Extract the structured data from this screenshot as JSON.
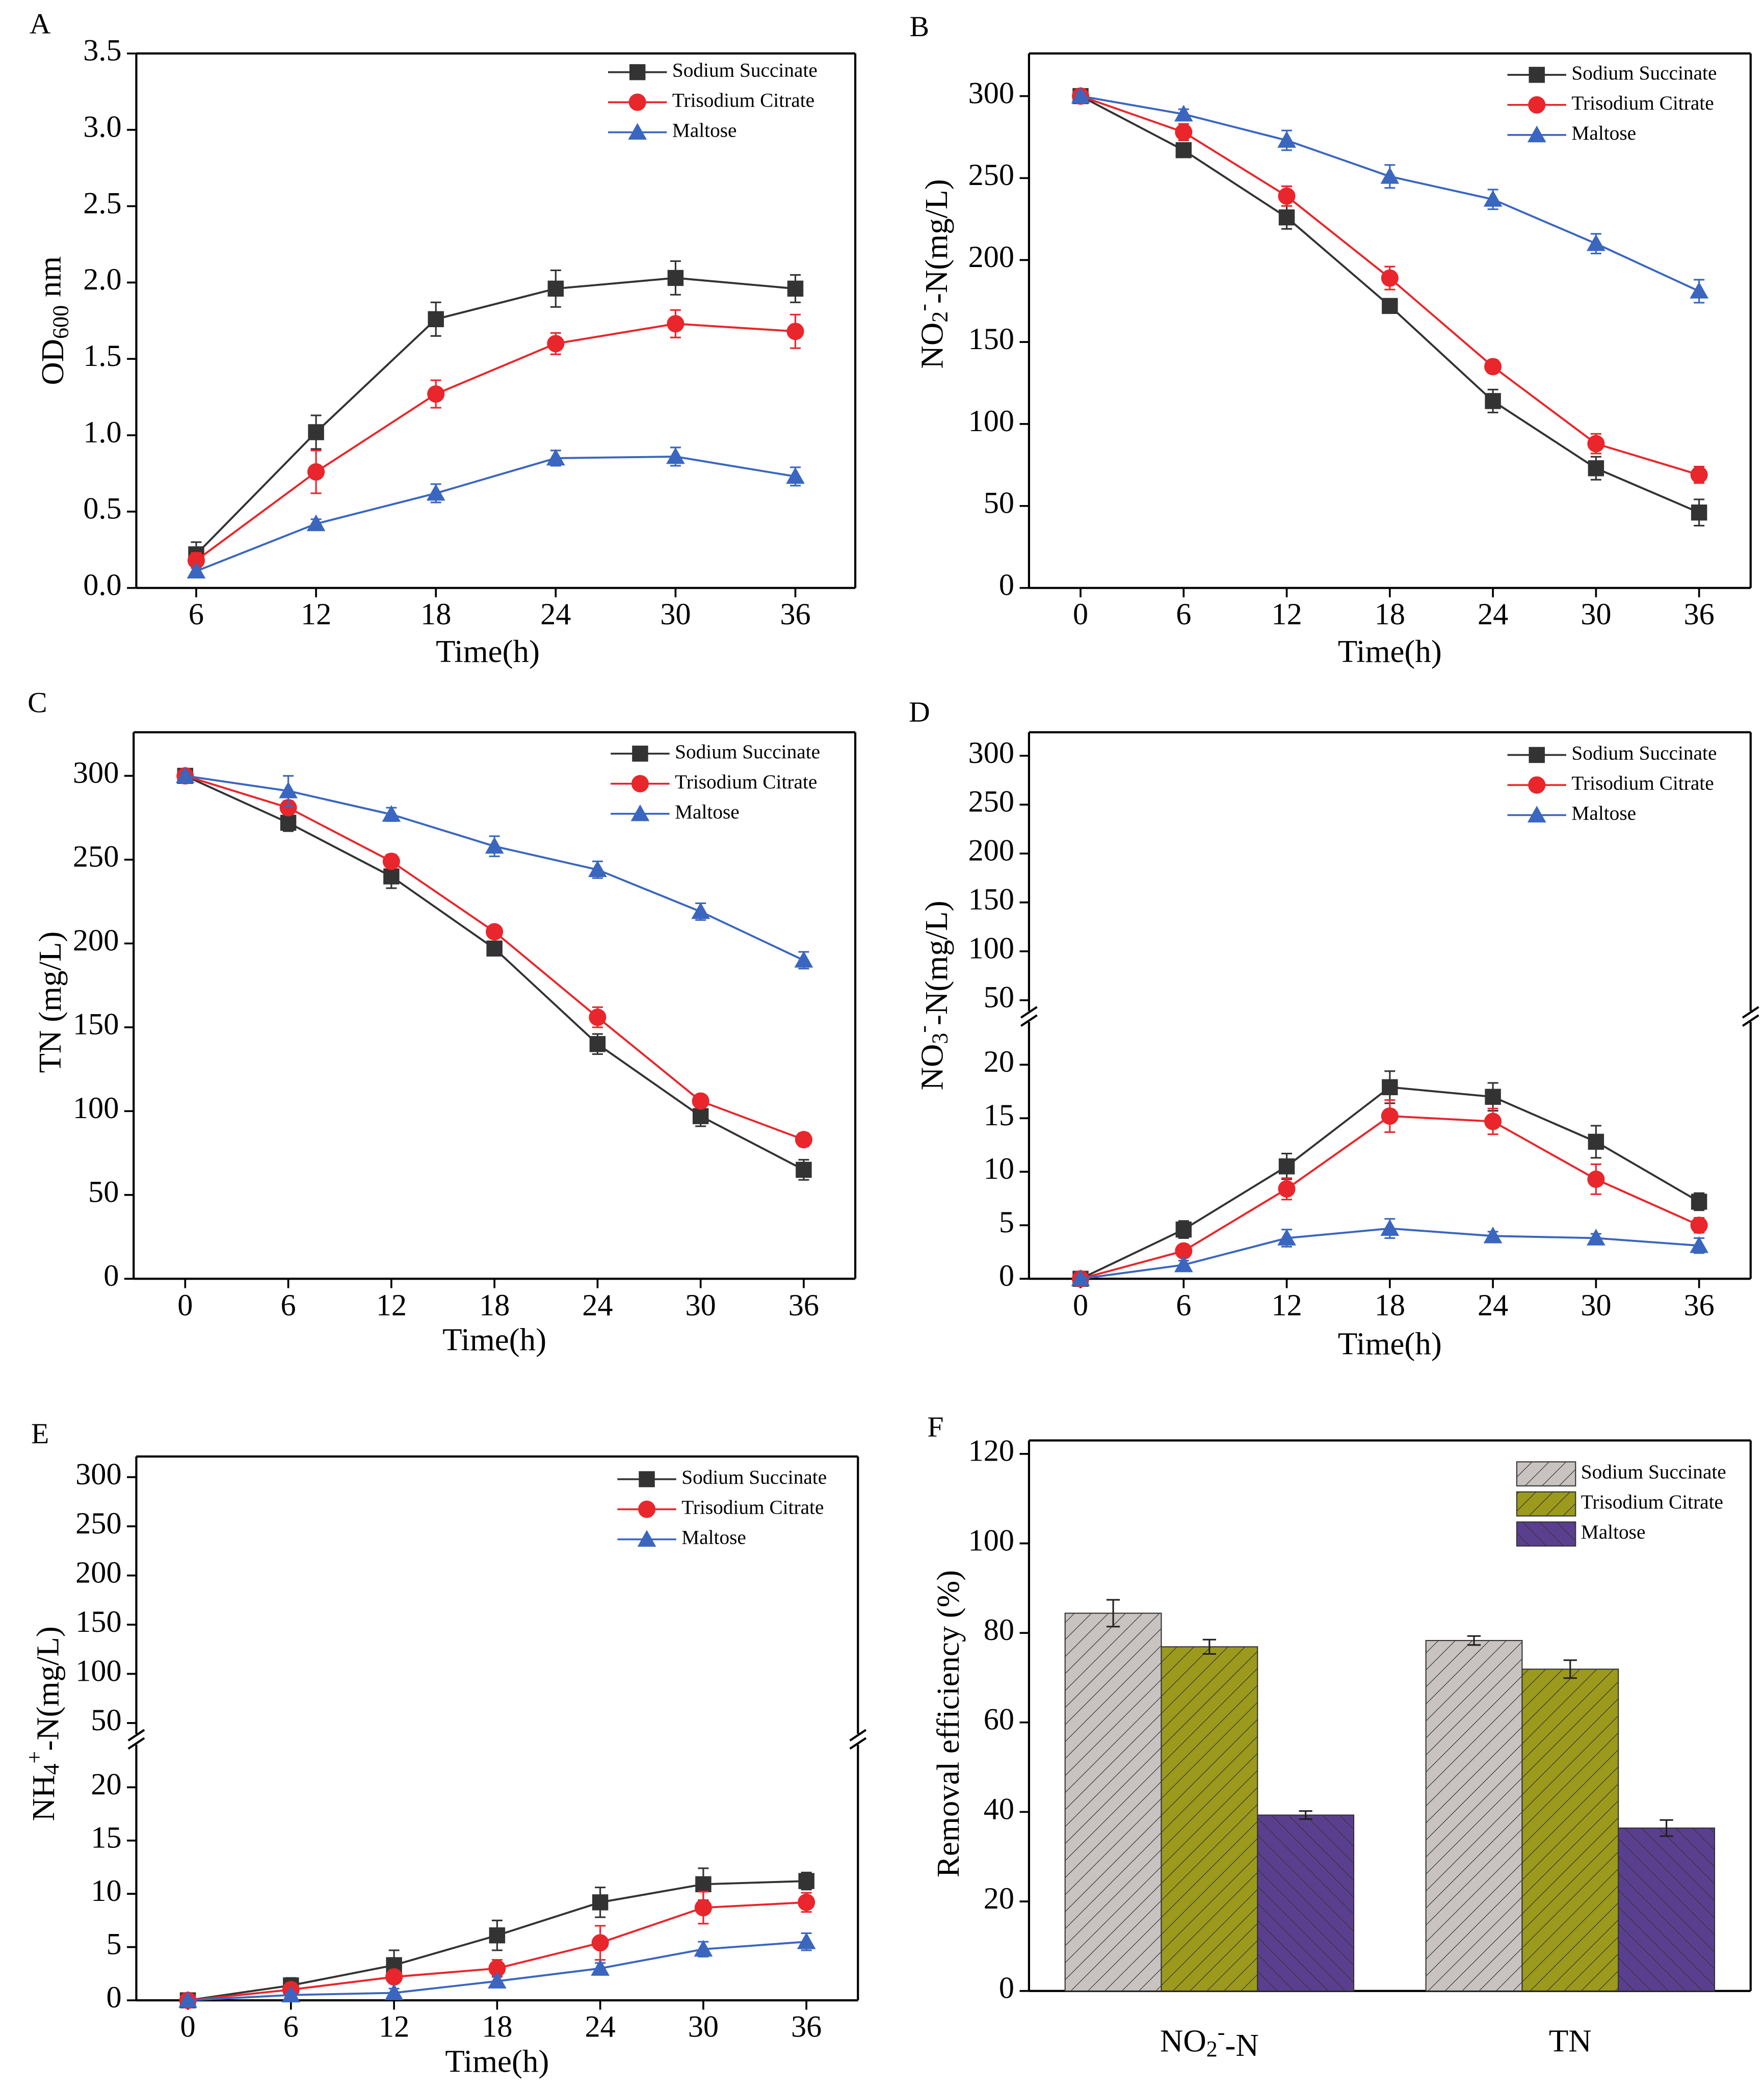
{
  "chart_data": [
    {
      "type": "line",
      "label": "A",
      "xlabel": "Time(h)",
      "ylabel": [
        {
          "text": "OD"
        },
        {
          "text": "600",
          "script": "sub"
        },
        {
          "text": " nm"
        }
      ],
      "x": [
        6,
        12,
        18,
        24,
        30,
        36
      ],
      "xlim": [
        3,
        39
      ],
      "xticks": [
        6,
        12,
        18,
        24,
        30,
        36
      ],
      "ylim": [
        0,
        3.5
      ],
      "yticks": [
        {
          "value": 0,
          "label": "0.0"
        },
        0.5,
        {
          "value": 1,
          "label": "1.0"
        },
        1.5,
        {
          "value": 2,
          "label": "2.0"
        },
        2.5,
        {
          "value": 3,
          "label": "3.0"
        },
        3.5
      ],
      "series": [
        {
          "name": "Sodium Succinate",
          "color": "#333333",
          "marker": "square",
          "values": [
            0.22,
            1.02,
            1.76,
            1.96,
            2.03,
            1.96
          ],
          "errors": [
            0.08,
            0.11,
            0.11,
            0.12,
            0.11,
            0.09
          ]
        },
        {
          "name": "Trisodium Citrate",
          "color": "#e8262b",
          "marker": "circle",
          "values": [
            0.18,
            0.76,
            1.27,
            1.6,
            1.73,
            1.68
          ],
          "errors": [
            0.05,
            0.14,
            0.09,
            0.07,
            0.09,
            0.11
          ]
        },
        {
          "name": "Maltose",
          "color": "#3a66c0",
          "marker": "triangle",
          "values": [
            0.11,
            0.42,
            0.62,
            0.85,
            0.86,
            0.73
          ],
          "errors": [
            0.02,
            0.03,
            0.06,
            0.05,
            0.06,
            0.06
          ]
        }
      ]
    },
    {
      "type": "line",
      "label": "B",
      "xlabel": "Time(h)",
      "ylabel": [
        {
          "text": "NO"
        },
        {
          "text": "2",
          "script": "sub"
        },
        {
          "text": "-",
          "script": "sup"
        },
        {
          "text": "-N(mg/L)"
        }
      ],
      "x": [
        0,
        6,
        12,
        18,
        24,
        30,
        36
      ],
      "xlim": [
        -3,
        39
      ],
      "xticks": [
        0,
        6,
        12,
        18,
        24,
        30,
        36
      ],
      "ylim": [
        0,
        326
      ],
      "yticks": [
        0,
        50,
        100,
        150,
        200,
        250,
        300
      ],
      "series": [
        {
          "name": "Sodium Succinate",
          "color": "#333333",
          "marker": "square",
          "values": [
            300,
            267,
            226,
            172,
            114,
            73,
            46
          ],
          "errors": [
            3,
            3,
            7,
            3,
            7,
            7,
            8
          ]
        },
        {
          "name": "Trisodium Citrate",
          "color": "#e8262b",
          "marker": "circle",
          "values": [
            300,
            278,
            239,
            189,
            135,
            88,
            69
          ],
          "errors": [
            3,
            5,
            6,
            7,
            4,
            6,
            5
          ]
        },
        {
          "name": "Maltose",
          "color": "#3a66c0",
          "marker": "triangle",
          "values": [
            300,
            289,
            273,
            251,
            237,
            210,
            181
          ],
          "errors": [
            2,
            3,
            6,
            7,
            6,
            6,
            7
          ]
        }
      ]
    },
    {
      "type": "line",
      "label": "C",
      "xlabel": "Time(h)",
      "ylabel": [
        {
          "text": "TN (mg/L)"
        }
      ],
      "x": [
        0,
        6,
        12,
        18,
        24,
        30,
        36
      ],
      "xlim": [
        -3,
        39
      ],
      "xticks": [
        0,
        6,
        12,
        18,
        24,
        30,
        36
      ],
      "ylim": [
        0,
        326
      ],
      "yticks": [
        0,
        50,
        100,
        150,
        200,
        250,
        300
      ],
      "series": [
        {
          "name": "Sodium Succinate",
          "color": "#333333",
          "marker": "square",
          "values": [
            300,
            272,
            240,
            197,
            140,
            97,
            65
          ],
          "errors": [
            2,
            5,
            7,
            3,
            6,
            6,
            6
          ]
        },
        {
          "name": "Trisodium Citrate",
          "color": "#e8262b",
          "marker": "circle",
          "values": [
            300,
            281,
            249,
            207,
            156,
            106,
            83
          ],
          "errors": [
            2,
            4,
            4,
            3,
            6,
            3,
            4
          ]
        },
        {
          "name": "Maltose",
          "color": "#3a66c0",
          "marker": "triangle",
          "values": [
            300,
            291,
            277,
            258,
            244,
            219,
            190
          ],
          "errors": [
            2,
            9,
            4,
            6,
            5,
            5,
            5
          ]
        }
      ]
    },
    {
      "type": "line",
      "label": "D",
      "xlabel": "Time(h)",
      "ylabel": [
        {
          "text": "NO"
        },
        {
          "text": "3",
          "script": "sub"
        },
        {
          "text": "-",
          "script": "sup"
        },
        {
          "text": "-N(mg/L)"
        }
      ],
      "x": [
        0,
        6,
        12,
        18,
        24,
        30,
        36
      ],
      "xlim": [
        -3,
        39
      ],
      "xticks": [
        0,
        6,
        12,
        18,
        24,
        30,
        36
      ],
      "ylim": [
        0,
        24
      ],
      "yticks": [
        0,
        5,
        10,
        15,
        20
      ],
      "upper_ylim": [
        39,
        324
      ],
      "upper_yticks": [
        50,
        100,
        150,
        200,
        250,
        300
      ],
      "series": [
        {
          "name": "Sodium Succinate",
          "color": "#333333",
          "marker": "square",
          "values": [
            0,
            4.6,
            10.5,
            17.9,
            17,
            12.8,
            7.2
          ],
          "errors": [
            0.3,
            0.8,
            1.2,
            1.5,
            1.3,
            1.5,
            0.8
          ]
        },
        {
          "name": "Trisodium Citrate",
          "color": "#e8262b",
          "marker": "circle",
          "values": [
            0,
            2.6,
            8.4,
            15.2,
            14.7,
            9.3,
            5
          ],
          "errors": [
            0.3,
            0.5,
            1,
            1.5,
            1.2,
            1.4,
            0.7
          ]
        },
        {
          "name": "Maltose",
          "color": "#3a66c0",
          "marker": "triangle",
          "values": [
            0,
            1.3,
            3.8,
            4.7,
            4,
            3.8,
            3.1
          ],
          "errors": [
            0.2,
            0.4,
            0.8,
            0.9,
            0.4,
            0.4,
            0.7
          ]
        }
      ]
    },
    {
      "type": "line",
      "label": "E",
      "xlabel": "Time(h)",
      "ylabel": [
        {
          "text": "NH"
        },
        {
          "text": "4",
          "script": "sub"
        },
        {
          "text": "+",
          "script": "sup"
        },
        {
          "text": "-N(mg/L)"
        }
      ],
      "x": [
        0,
        6,
        12,
        18,
        24,
        30,
        36
      ],
      "xlim": [
        -3,
        39
      ],
      "xticks": [
        0,
        6,
        12,
        18,
        24,
        30,
        36
      ],
      "ylim": [
        0,
        24
      ],
      "yticks": [
        0,
        5,
        10,
        15,
        20
      ],
      "upper_ylim": [
        39,
        321
      ],
      "upper_yticks": [
        50,
        100,
        150,
        200,
        250,
        300
      ],
      "series": [
        {
          "name": "Sodium Succinate",
          "color": "#333333",
          "marker": "square",
          "values": [
            0,
            1.4,
            3.3,
            6.1,
            9.2,
            10.9,
            11.2
          ],
          "errors": [
            0.4,
            0.7,
            1.4,
            1.4,
            1.4,
            1.5,
            0.8
          ]
        },
        {
          "name": "Trisodium Citrate",
          "color": "#e8262b",
          "marker": "circle",
          "values": [
            0,
            1,
            2.2,
            3,
            5.4,
            8.7,
            9.2
          ],
          "errors": [
            0.3,
            0.6,
            0.6,
            0.8,
            1.6,
            1.5,
            0.9
          ]
        },
        {
          "name": "Maltose",
          "color": "#3a66c0",
          "marker": "triangle",
          "values": [
            0,
            0.5,
            0.7,
            1.8,
            3,
            4.8,
            5.5
          ],
          "errors": [
            0.2,
            0.3,
            0.4,
            0.5,
            0.5,
            0.7,
            0.8
          ]
        }
      ]
    },
    {
      "type": "bar",
      "label": "F",
      "ylabel": [
        {
          "text": "Removal efficiency (%)"
        }
      ],
      "categories": [
        [
          {
            "text": "NO"
          },
          {
            "text": "2",
            "script": "sub"
          },
          {
            "text": "-",
            "script": "sup"
          },
          {
            "text": "-N"
          }
        ],
        [
          {
            "text": "TN"
          }
        ]
      ],
      "ylim": [
        0,
        123
      ],
      "yticks": [
        0,
        20,
        40,
        60,
        80,
        100,
        120
      ],
      "series": [
        {
          "name": "Sodium Succinate",
          "color": "#c8c3c0",
          "values": [
            84.4,
            78.3
          ],
          "errors": [
            3,
            1
          ]
        },
        {
          "name": "Trisodium Citrate",
          "color": "#9b9a1c",
          "values": [
            76.9,
            71.9
          ],
          "errors": [
            1.6,
            2
          ]
        },
        {
          "name": "Maltose",
          "color": "#5b3f8f",
          "values": [
            39.3,
            36.4
          ],
          "errors": [
            0.9,
            1.8
          ]
        }
      ]
    }
  ]
}
